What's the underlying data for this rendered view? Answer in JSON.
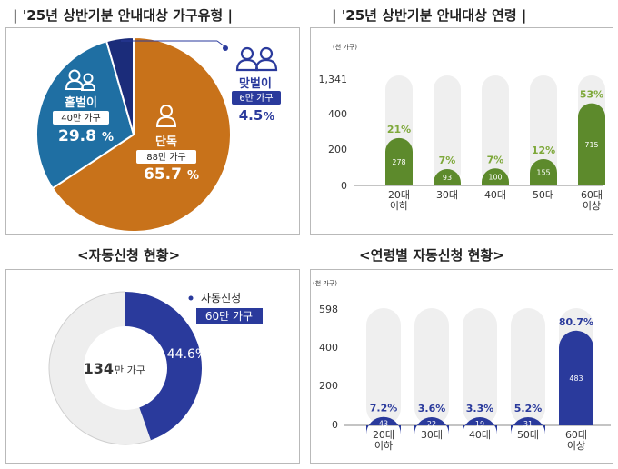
{
  "titles": {
    "top_left": "| '25년 상반기분 안내대상 가구유형 |",
    "top_right": "| '25년 상반기분 안내대상 연령 |",
    "bottom_left": "<자동신청 현황>",
    "bottom_right": "<연령별 자동신청 현황>"
  },
  "colors": {
    "single": "#c8721a",
    "single_parent": "#1f6fa3",
    "dual": "#1b2c7a",
    "green_bar": "#5d8a2c",
    "green_text": "#7ea83a",
    "navy_bar": "#2a3a9c",
    "navy_text": "#2a3a9c",
    "track": "#efefef",
    "donut_rest": "#eeeeee"
  },
  "chart_data": [
    {
      "type": "pie",
      "title": "'25년 상반기분 안내대상 가구유형",
      "slices": [
        {
          "label": "단독",
          "value_label": "88만 가구",
          "percent": 65.7,
          "icon": "person-icon"
        },
        {
          "label": "홑벌이",
          "value_label": "40만 가구",
          "percent": 29.8,
          "icon": "two-persons-icon"
        },
        {
          "label": "맞벌이",
          "value_label": "6만 가구",
          "percent": 4.5,
          "icon": "two-persons-icon"
        }
      ]
    },
    {
      "type": "bar",
      "title": "'25년 상반기분 안내대상 연령",
      "unit": "(천 가구)",
      "categories": [
        "20대\n이하",
        "30대",
        "40대",
        "50대",
        "60대\n이상"
      ],
      "values": [
        278,
        93,
        100,
        155,
        715
      ],
      "percent_labels": [
        "21%",
        "7%",
        "7%",
        "12%",
        "53%"
      ],
      "y_ticks": [
        "0",
        "200",
        "400",
        "1,341"
      ],
      "ylim": [
        0,
        1341
      ],
      "axis_note": "broken axis: 0–400 linear, top tick 1,341"
    },
    {
      "type": "pie",
      "title": "자동신청 현황",
      "center_label_num": "134",
      "center_label_unit": "만 가구",
      "highlight": {
        "label": "자동신청",
        "value_label": "60만 가구",
        "percent": 44.6,
        "percent_text": "44.6%"
      }
    },
    {
      "type": "bar",
      "title": "연령별 자동신청 현황",
      "unit": "(천 가구)",
      "categories": [
        "20대\n이하",
        "30대",
        "40대",
        "50대",
        "60대\n이상"
      ],
      "values": [
        43,
        22,
        19,
        31,
        483
      ],
      "percent_labels": [
        "7.2%",
        "3.6%",
        "3.3%",
        "5.2%",
        "80.7%"
      ],
      "y_ticks": [
        "0",
        "200",
        "400",
        "598"
      ],
      "ylim": [
        0,
        598
      ]
    }
  ]
}
